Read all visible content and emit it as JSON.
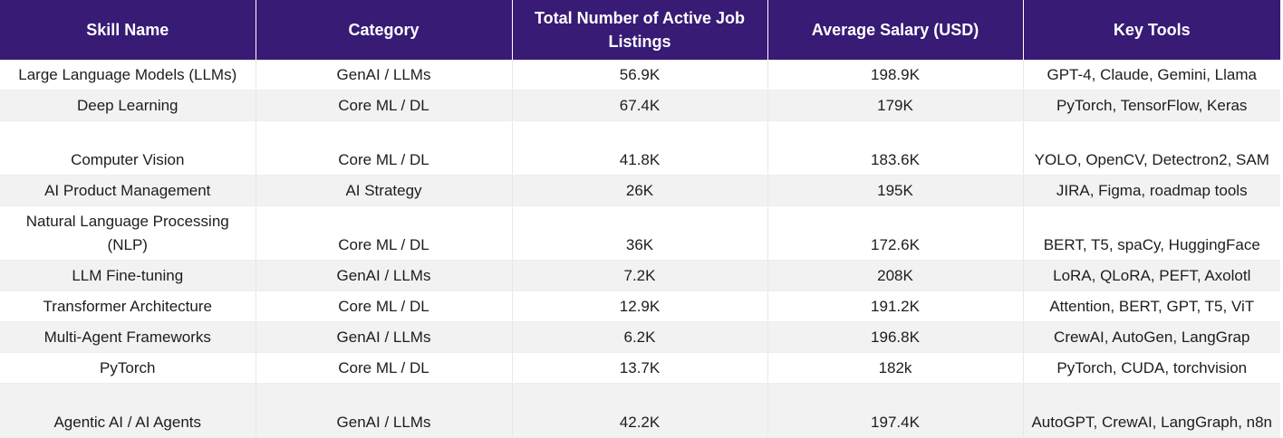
{
  "table": {
    "headers": [
      "Skill Name",
      "Category",
      "Total Number of Active Job Listings",
      "Average Salary (USD)",
      "Key Tools"
    ],
    "rows": [
      [
        "Large Language Models (LLMs)",
        "GenAI / LLMs",
        "56.9K",
        "198.9K",
        "GPT-4, Claude, Gemini, Llama"
      ],
      [
        "Deep Learning",
        "Core ML / DL",
        "67.4K",
        "179K",
        "PyTorch, TensorFlow, Keras"
      ],
      [
        "Computer Vision",
        "Core ML / DL",
        "41.8K",
        "183.6K",
        "YOLO, OpenCV, Detectron2, SAM"
      ],
      [
        "AI Product Management",
        "AI Strategy",
        "26K",
        "195K",
        "JIRA, Figma, roadmap tools"
      ],
      [
        "Natural Language Processing (NLP)",
        "Core ML / DL",
        "36K",
        "172.6K",
        "BERT, T5, spaCy, HuggingFace"
      ],
      [
        "LLM Fine-tuning",
        "GenAI / LLMs",
        "7.2K",
        "208K",
        "LoRA, QLoRA, PEFT, Axolotl"
      ],
      [
        "Transformer Architecture",
        "Core ML / DL",
        "12.9K",
        "191.2K",
        "Attention, BERT, GPT, T5, ViT"
      ],
      [
        "Multi-Agent Frameworks",
        "GenAI / LLMs",
        "6.2K",
        "196.8K",
        "CrewAI, AutoGen, LangGrap"
      ],
      [
        "PyTorch",
        "Core ML / DL",
        "13.7K",
        "182k",
        "PyTorch, CUDA, torchvision"
      ],
      [
        "Agentic AI / AI Agents",
        "GenAI / LLMs",
        "42.2K",
        "197.4K",
        "AutoGPT, CrewAI, LangGraph, n8n"
      ]
    ]
  },
  "colors": {
    "header_bg": "#371b75",
    "header_text": "#ffffff",
    "row_alt_bg": "#f2f2f2"
  }
}
